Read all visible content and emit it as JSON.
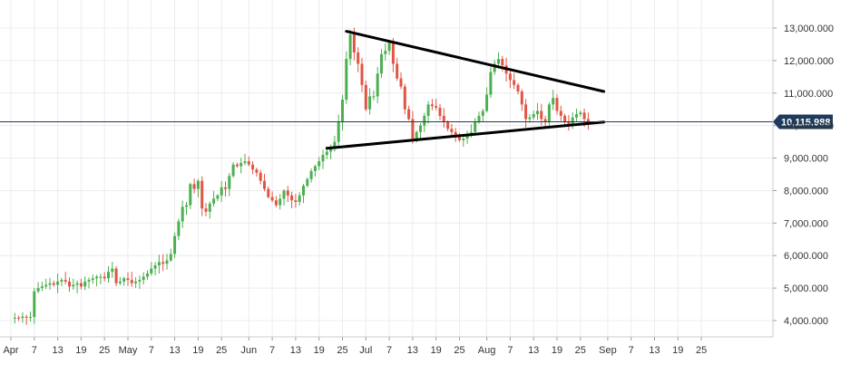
{
  "chart_data": {
    "type": "candlestick",
    "y_ticks": [
      "4,000.000",
      "5,000.000",
      "6,000.000",
      "7,000.000",
      "8,000.000",
      "9,000.000",
      "10,000.000",
      "11,000.000",
      "12,000.000",
      "13,000.000"
    ],
    "y_tick_values": [
      4000,
      5000,
      6000,
      7000,
      8000,
      9000,
      10000,
      11000,
      12000,
      13000
    ],
    "ylim": [
      3500,
      13900
    ],
    "x_ticks": [
      "Apr",
      "7",
      "13",
      "19",
      "25",
      "May",
      "7",
      "13",
      "19",
      "25",
      "Jun",
      "7",
      "13",
      "19",
      "25",
      "Jul",
      "7",
      "13",
      "19",
      "25",
      "Aug",
      "7",
      "13",
      "19",
      "25",
      "Sep",
      "7",
      "13",
      "19",
      "25"
    ],
    "x_tick_days": [
      0,
      6,
      12,
      18,
      24,
      30,
      36,
      42,
      48,
      54,
      61,
      67,
      73,
      79,
      85,
      91,
      97,
      103,
      109,
      115,
      122,
      128,
      134,
      140,
      146,
      153,
      159,
      165,
      171,
      177
    ],
    "last_price_label": "10,115.988",
    "last_price": 10116,
    "grid": true,
    "colors": {
      "up": "#4caf50",
      "down": "#e05545",
      "price_line": "#1e3a5c",
      "trend_line": "#000000",
      "grid": "#ececec",
      "axis": "#cccccc"
    },
    "trend_lines": [
      {
        "name": "upper",
        "from": [
          "Jun 26",
          12900
        ],
        "to": [
          "Aug 31",
          11050
        ]
      },
      {
        "name": "lower",
        "from": [
          "Jun 21",
          9300
        ],
        "to": [
          "Aug 31",
          10110
        ]
      }
    ],
    "closes": [
      4090,
      4080,
      4120,
      4100,
      4110,
      4900,
      5000,
      5050,
      5100,
      5150,
      5100,
      5200,
      5250,
      5200,
      5050,
      5100,
      5150,
      5050,
      5200,
      5250,
      5300,
      5350,
      5350,
      5300,
      5500,
      5600,
      5150,
      5200,
      5300,
      5250,
      5150,
      5200,
      5250,
      5350,
      5450,
      5600,
      5700,
      5800,
      5750,
      5850,
      6050,
      6600,
      7050,
      7500,
      7550,
      8200,
      8050,
      8300,
      7450,
      7350,
      7600,
      7750,
      7850,
      8100,
      8050,
      8450,
      8800,
      8750,
      8850,
      8900,
      8800,
      8650,
      8550,
      8300,
      8050,
      7800,
      7700,
      7550,
      7750,
      8000,
      7850,
      7700,
      7650,
      7850,
      8150,
      8350,
      8600,
      8750,
      8900,
      9100,
      9200,
      9350,
      9500,
      10100,
      10800,
      12050,
      12800,
      12250,
      11900,
      11250,
      10500,
      10900,
      10900,
      11600,
      12200,
      12300,
      12550,
      11900,
      11450,
      11200,
      10500,
      10200,
      9600,
      9800,
      10000,
      10300,
      10650,
      10600,
      10550,
      10300,
      10100,
      9900,
      9800,
      9650,
      9550,
      9600,
      9700,
      9800,
      10100,
      10300,
      10450,
      10950,
      11650,
      11900,
      12050,
      11850,
      11600,
      11400,
      11250,
      11050,
      10650,
      10200,
      10250,
      10350,
      10450,
      10200,
      10100,
      10650,
      10850,
      10450,
      10300,
      10100,
      10050,
      10250,
      10350,
      10400,
      10200,
      10116
    ]
  }
}
